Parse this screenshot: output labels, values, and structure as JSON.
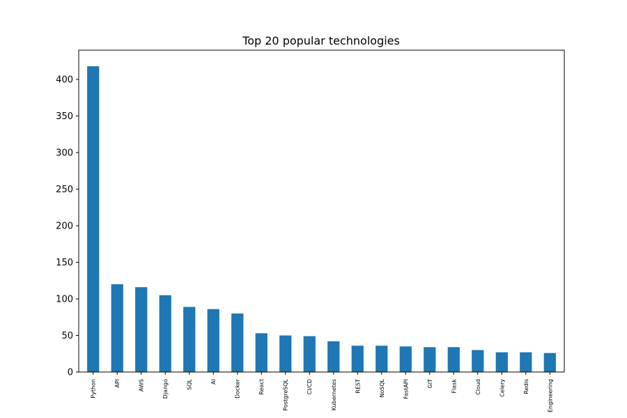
{
  "chart_data": {
    "type": "bar",
    "title": "Top 20 popular technologies",
    "xlabel": "",
    "ylabel": "",
    "categories": [
      "Python",
      "API",
      "AWS",
      "Django",
      "SQL",
      "AI",
      "Docker",
      "React",
      "PostgreSQL",
      "CI/CD",
      "Kubernetes",
      "REST",
      "NoSQL",
      "FastAPI",
      "GIT",
      "Flask",
      "Cloud",
      "Celery",
      "Redis",
      "Engineering"
    ],
    "values": [
      418,
      120,
      116,
      105,
      89,
      86,
      80,
      53,
      50,
      49,
      42,
      36,
      36,
      35,
      34,
      34,
      30,
      27,
      27,
      26
    ],
    "ylim": [
      0,
      440
    ],
    "yticks": [
      0,
      50,
      100,
      150,
      200,
      250,
      300,
      350,
      400
    ],
    "grid": false,
    "bar_color": "#1f77b4"
  }
}
